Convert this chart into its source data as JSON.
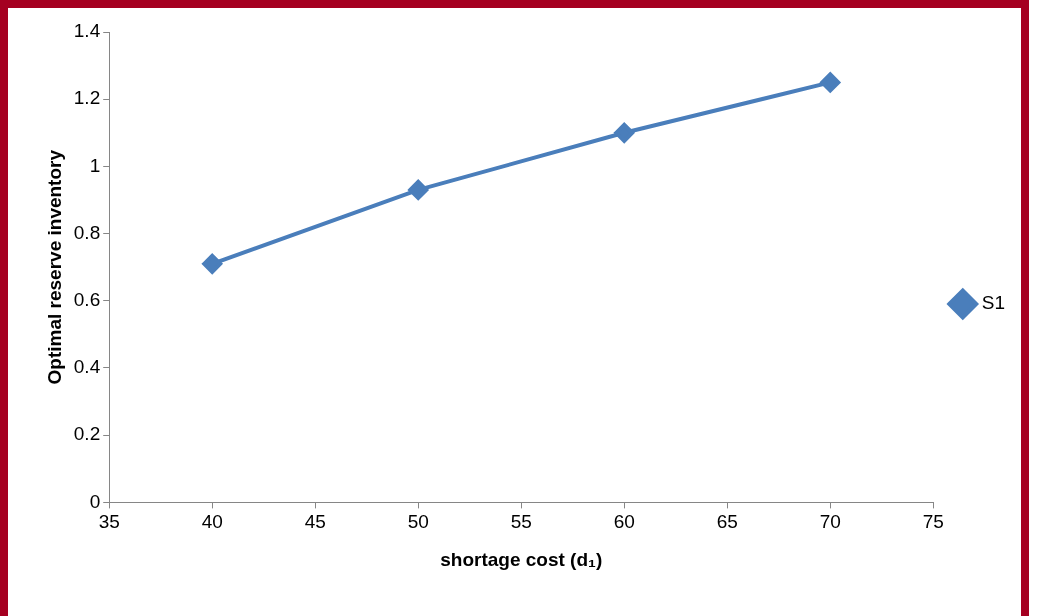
{
  "chart_data": {
    "type": "line",
    "xlabel": "shortage cost (d₁)",
    "ylabel": "Optimal reserve inventory",
    "x": [
      40,
      50,
      60,
      70
    ],
    "series": [
      {
        "name": "S1",
        "color": "#4a7ebb",
        "values": [
          0.71,
          0.93,
          1.1,
          1.25
        ]
      }
    ],
    "xlim": [
      35,
      75
    ],
    "xticks": [
      35,
      40,
      45,
      50,
      55,
      60,
      65,
      70,
      75
    ],
    "ylim": [
      0,
      1.4
    ],
    "yticks": [
      0,
      0.2,
      0.4,
      0.6,
      0.8,
      1,
      1.2,
      1.4
    ],
    "grid": false,
    "legend": "right",
    "marker": "diamond",
    "line_style": "solid"
  }
}
